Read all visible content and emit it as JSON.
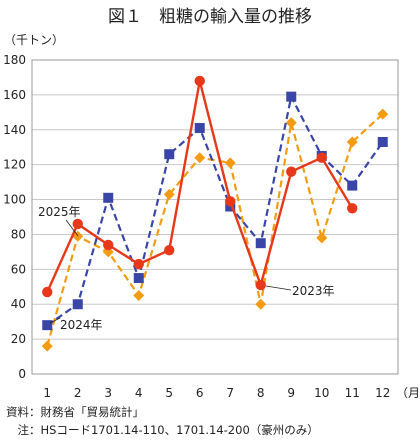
{
  "chart_data": {
    "type": "line",
    "title": "図１　粗糖の輸入量の推移",
    "y_unit": "（千トン）",
    "x_unit": "（月）",
    "x": [
      "1",
      "2",
      "3",
      "4",
      "5",
      "6",
      "7",
      "8",
      "9",
      "10",
      "11",
      "12"
    ],
    "ylim": [
      0,
      180
    ],
    "yticks": [
      0,
      20,
      40,
      60,
      80,
      100,
      120,
      140,
      160,
      180
    ],
    "grid": true,
    "series": [
      {
        "name": "2023年",
        "color": "#f39c12",
        "style": "dashed",
        "marker": "diamond",
        "values": [
          16,
          79,
          70,
          45,
          103,
          124,
          121,
          40,
          144,
          78,
          133,
          149
        ]
      },
      {
        "name": "2024年",
        "color": "#3a45a8",
        "style": "dashed",
        "marker": "square",
        "values": [
          28,
          40,
          101,
          55,
          126,
          141,
          96,
          75,
          159,
          125,
          108,
          133
        ]
      },
      {
        "name": "2025年",
        "color": "#e8381a",
        "style": "solid",
        "marker": "circle",
        "values": [
          47,
          86,
          74,
          63,
          71,
          168,
          99,
          51,
          116,
          124,
          95,
          null
        ]
      }
    ]
  },
  "footnotes": {
    "source": "資料：財務省「貿易統計」",
    "note": "　注：HSコード1701.14-110、1701.14-200（豪州のみ）"
  }
}
